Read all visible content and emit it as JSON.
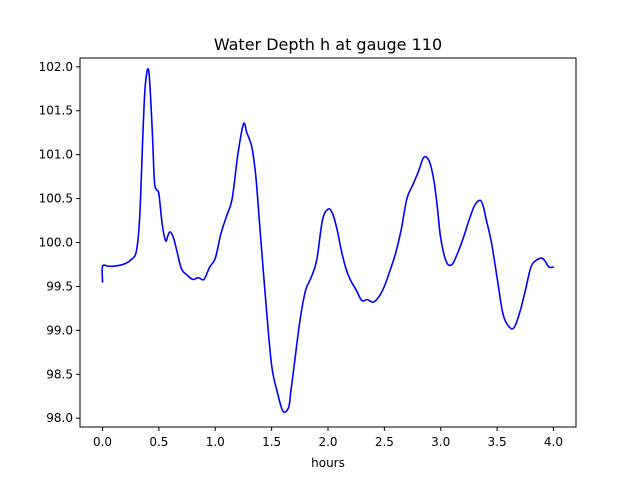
{
  "chart_data": {
    "type": "line",
    "title": "Water Depth h at gauge 110",
    "xlabel": "hours",
    "ylabel": "",
    "xlim": [
      -0.2,
      4.2
    ],
    "ylim": [
      97.9,
      102.1
    ],
    "x_ticks": [
      0.0,
      0.5,
      1.0,
      1.5,
      2.0,
      2.5,
      3.0,
      3.5,
      4.0
    ],
    "x_tick_labels": [
      "0.0",
      "0.5",
      "1.0",
      "1.5",
      "2.0",
      "2.5",
      "3.0",
      "3.5",
      "4.0"
    ],
    "y_ticks": [
      98.0,
      98.5,
      99.0,
      99.5,
      100.0,
      100.5,
      101.0,
      101.5,
      102.0
    ],
    "y_tick_labels": [
      "98.0",
      "98.5",
      "99.0",
      "99.5",
      "100.0",
      "100.5",
      "101.0",
      "101.5",
      "102.0"
    ],
    "grid": false,
    "series": [
      {
        "color": "#0000ff",
        "x": [
          0.0,
          0.0,
          0.05,
          0.1,
          0.15,
          0.2,
          0.25,
          0.3,
          0.33,
          0.36,
          0.38,
          0.41,
          0.44,
          0.46,
          0.48,
          0.5,
          0.53,
          0.56,
          0.58,
          0.6,
          0.63,
          0.66,
          0.7,
          0.75,
          0.8,
          0.85,
          0.9,
          0.95,
          1.0,
          1.05,
          1.1,
          1.15,
          1.2,
          1.25,
          1.28,
          1.31,
          1.33,
          1.36,
          1.4,
          1.45,
          1.5,
          1.55,
          1.6,
          1.65,
          1.67,
          1.7,
          1.75,
          1.8,
          1.85,
          1.9,
          1.95,
          2.0,
          2.04,
          2.08,
          2.12,
          2.16,
          2.2,
          2.25,
          2.3,
          2.35,
          2.4,
          2.45,
          2.5,
          2.55,
          2.6,
          2.65,
          2.7,
          2.75,
          2.8,
          2.85,
          2.9,
          2.94,
          2.97,
          3.0,
          3.05,
          3.1,
          3.15,
          3.2,
          3.25,
          3.3,
          3.35,
          3.38,
          3.4,
          3.45,
          3.5,
          3.55,
          3.6,
          3.65,
          3.7,
          3.75,
          3.8,
          3.85,
          3.9,
          3.93,
          3.96,
          4.0
        ],
        "y": [
          99.55,
          99.73,
          99.73,
          99.73,
          99.74,
          99.76,
          99.8,
          99.9,
          100.3,
          101.3,
          101.8,
          101.95,
          101.3,
          100.7,
          100.6,
          100.55,
          100.2,
          100.02,
          100.08,
          100.12,
          100.05,
          99.9,
          99.7,
          99.63,
          99.58,
          99.6,
          99.58,
          99.72,
          99.82,
          100.1,
          100.3,
          100.5,
          101.0,
          101.35,
          101.25,
          101.15,
          101.05,
          100.75,
          100.1,
          99.3,
          98.6,
          98.3,
          98.08,
          98.12,
          98.3,
          98.6,
          99.1,
          99.45,
          99.6,
          99.8,
          100.25,
          100.38,
          100.33,
          100.15,
          99.9,
          99.7,
          99.57,
          99.46,
          99.34,
          99.35,
          99.32,
          99.38,
          99.5,
          99.68,
          99.88,
          100.15,
          100.5,
          100.65,
          100.8,
          100.97,
          100.92,
          100.7,
          100.4,
          100.05,
          99.78,
          99.75,
          99.88,
          100.05,
          100.25,
          100.42,
          100.48,
          100.4,
          100.28,
          100.0,
          99.6,
          99.2,
          99.05,
          99.03,
          99.2,
          99.45,
          99.72,
          99.8,
          99.82,
          99.78,
          99.72,
          99.72
        ]
      }
    ]
  }
}
